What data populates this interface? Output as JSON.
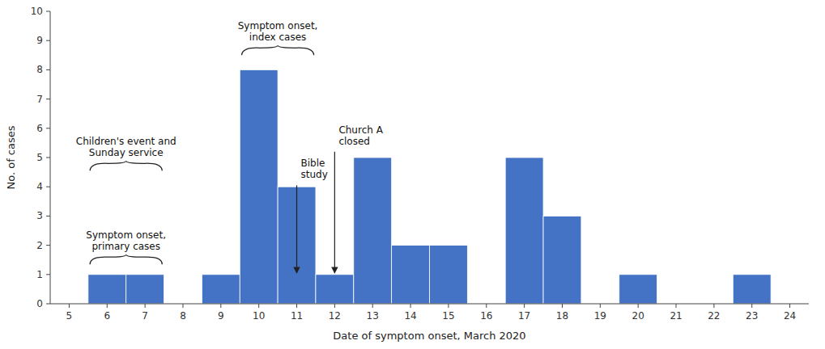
{
  "chart_data": {
    "type": "bar",
    "xlabel": "Date of symptom onset, March 2020",
    "ylabel": "No. of cases",
    "x": [
      5,
      6,
      7,
      8,
      9,
      10,
      11,
      12,
      13,
      14,
      15,
      16,
      17,
      18,
      19,
      20,
      21,
      22,
      23,
      24
    ],
    "values": [
      0,
      1,
      1,
      0,
      1,
      8,
      4,
      1,
      5,
      2,
      2,
      0,
      5,
      3,
      0,
      1,
      0,
      0,
      1,
      0
    ],
    "color": "#4472C4",
    "xlim": [
      4.5,
      24.5
    ],
    "xticks": [
      5,
      6,
      7,
      8,
      9,
      10,
      11,
      12,
      13,
      14,
      15,
      16,
      17,
      18,
      19,
      20,
      21,
      22,
      23,
      24
    ],
    "ylim": [
      0,
      10
    ],
    "yticks": [
      0,
      1,
      2,
      3,
      4,
      5,
      6,
      7,
      8,
      9,
      10
    ],
    "grid": false,
    "annotations": [
      {
        "type": "brace",
        "text": "Symptom onset,\nindex cases",
        "x": [
          9.55,
          11.45
        ],
        "y": 8.5
      },
      {
        "type": "arrow",
        "text": "Bible\nstudy",
        "x": 11,
        "y": [
          4.05,
          1.05
        ]
      },
      {
        "type": "arrow",
        "text": "Church A\nclosed",
        "x": 12,
        "y": [
          5.2,
          1.05
        ]
      },
      {
        "type": "brace",
        "text": "Children's event and\nSunday service",
        "x": [
          5.55,
          7.45
        ],
        "y": 4.55
      },
      {
        "type": "brace",
        "text": "Symptom onset,\nprimary cases",
        "x": [
          5.55,
          7.45
        ],
        "y": 1.35
      }
    ]
  }
}
